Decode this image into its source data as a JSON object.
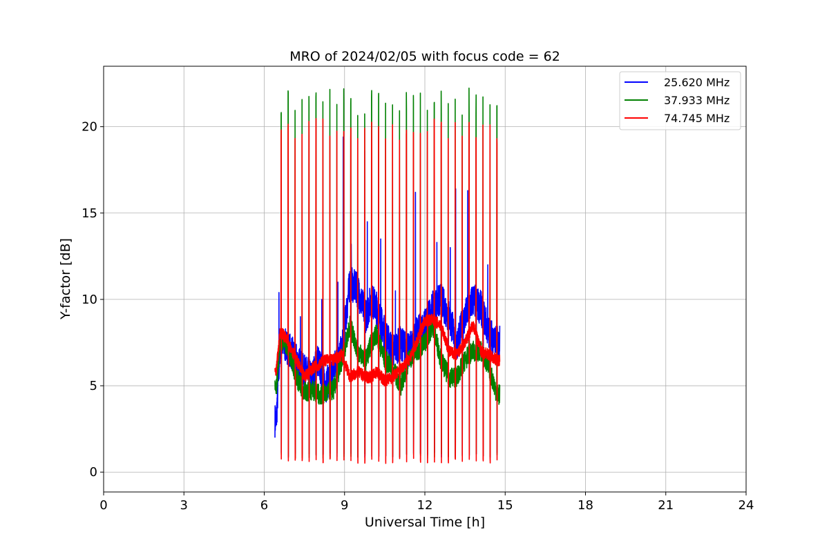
{
  "chart_data": {
    "type": "line",
    "title": "MRO of 2024/02/05 with focus code = 62",
    "xlabel": "Universal Time [h]",
    "ylabel": "Y-factor [dB]",
    "xlim": [
      0,
      24
    ],
    "ylim": [
      -1.15,
      23.5
    ],
    "xticks": [
      0,
      3,
      6,
      9,
      12,
      15,
      18,
      21,
      24
    ],
    "yticks": [
      0,
      5,
      10,
      15,
      20
    ],
    "grid": true,
    "legend_position": "top-right",
    "x_range_observed": [
      6.4,
      14.8
    ],
    "calibration_cycle_h": 0.26,
    "series": [
      {
        "name": "25.620 MHz",
        "color": "#0000ff",
        "baseline_samples": [
          [
            6.45,
            3.0
          ],
          [
            6.6,
            7.5
          ],
          [
            6.9,
            7.2
          ],
          [
            7.2,
            6.5
          ],
          [
            7.5,
            5.8
          ],
          [
            7.8,
            5.5
          ],
          [
            8.0,
            6.5
          ],
          [
            8.3,
            5.0
          ],
          [
            8.6,
            6.0
          ],
          [
            8.9,
            7.0
          ],
          [
            9.2,
            11.0
          ],
          [
            9.5,
            10.5
          ],
          [
            9.8,
            9.0
          ],
          [
            10.0,
            10.0
          ],
          [
            10.2,
            9.5
          ],
          [
            10.5,
            8.0
          ],
          [
            10.8,
            7.0
          ],
          [
            11.1,
            7.5
          ],
          [
            11.4,
            7.0
          ],
          [
            11.7,
            8.0
          ],
          [
            12.0,
            8.5
          ],
          [
            12.3,
            9.5
          ],
          [
            12.6,
            10.0
          ],
          [
            12.9,
            9.0
          ],
          [
            13.2,
            7.5
          ],
          [
            13.5,
            9.0
          ],
          [
            13.8,
            10.0
          ],
          [
            14.1,
            9.5
          ],
          [
            14.4,
            8.0
          ],
          [
            14.7,
            7.5
          ]
        ],
        "spike_peaks": [
          [
            6.55,
            10.4
          ],
          [
            7.35,
            9.0
          ],
          [
            8.15,
            10.0
          ],
          [
            8.75,
            11.0
          ],
          [
            8.95,
            19.4
          ],
          [
            9.25,
            13.2
          ],
          [
            9.75,
            18.6
          ],
          [
            9.85,
            14.5
          ],
          [
            10.35,
            13.5
          ],
          [
            10.9,
            10.5
          ],
          [
            11.65,
            16.2
          ],
          [
            12.45,
            13.3
          ],
          [
            12.95,
            13.0
          ],
          [
            13.15,
            16.4
          ],
          [
            13.6,
            16.3
          ],
          [
            14.35,
            12.0
          ]
        ],
        "calibration_min": 0.85
      },
      {
        "name": "37.933 MHz",
        "color": "#008000",
        "baseline_samples": [
          [
            6.45,
            4.8
          ],
          [
            6.6,
            7.8
          ],
          [
            6.9,
            7.2
          ],
          [
            7.2,
            5.5
          ],
          [
            7.5,
            4.6
          ],
          [
            7.8,
            4.8
          ],
          [
            8.0,
            4.5
          ],
          [
            8.3,
            4.5
          ],
          [
            8.6,
            4.8
          ],
          [
            8.9,
            6.5
          ],
          [
            9.2,
            8.5
          ],
          [
            9.5,
            7.0
          ],
          [
            9.8,
            6.5
          ],
          [
            10.0,
            7.5
          ],
          [
            10.2,
            8.0
          ],
          [
            10.5,
            6.5
          ],
          [
            10.8,
            6.0
          ],
          [
            11.1,
            5.0
          ],
          [
            11.4,
            6.5
          ],
          [
            11.7,
            7.0
          ],
          [
            12.0,
            7.5
          ],
          [
            12.3,
            8.5
          ],
          [
            12.6,
            6.5
          ],
          [
            12.9,
            5.5
          ],
          [
            13.2,
            5.5
          ],
          [
            13.5,
            6.5
          ],
          [
            13.8,
            7.0
          ],
          [
            14.1,
            7.0
          ],
          [
            14.4,
            6.0
          ],
          [
            14.7,
            4.5
          ]
        ],
        "calibration_max": 22.25,
        "calibration_min": 0.8
      },
      {
        "name": "74.745 MHz",
        "color": "#ff0000",
        "baseline_samples": [
          [
            6.45,
            5.9
          ],
          [
            6.6,
            8.2
          ],
          [
            6.9,
            7.5
          ],
          [
            7.2,
            6.5
          ],
          [
            7.5,
            5.5
          ],
          [
            7.8,
            6.0
          ],
          [
            8.0,
            6.2
          ],
          [
            8.3,
            6.5
          ],
          [
            8.6,
            6.5
          ],
          [
            8.9,
            6.8
          ],
          [
            9.2,
            5.5
          ],
          [
            9.5,
            5.8
          ],
          [
            9.8,
            5.5
          ],
          [
            10.0,
            5.5
          ],
          [
            10.2,
            5.8
          ],
          [
            10.5,
            5.3
          ],
          [
            10.8,
            5.5
          ],
          [
            11.1,
            6.0
          ],
          [
            11.4,
            6.5
          ],
          [
            11.7,
            7.5
          ],
          [
            12.0,
            8.8
          ],
          [
            12.3,
            8.8
          ],
          [
            12.6,
            8.5
          ],
          [
            12.9,
            7.0
          ],
          [
            13.2,
            6.8
          ],
          [
            13.5,
            7.5
          ],
          [
            13.8,
            8.5
          ],
          [
            14.1,
            7.0
          ],
          [
            14.4,
            6.8
          ],
          [
            14.7,
            6.5
          ]
        ],
        "calibration_max": 20.5,
        "calibration_min": 0.5
      }
    ]
  }
}
